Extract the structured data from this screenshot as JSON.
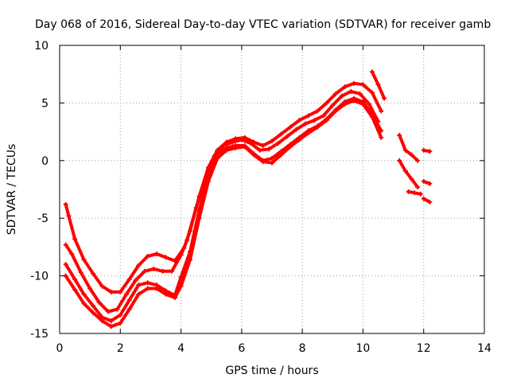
{
  "chart_data": {
    "type": "scatter",
    "title": "Day 068 of 2016, Sidereal Day-to-day VTEC variation (SDTVAR) for receiver gamb",
    "xlabel": "GPS time / hours",
    "ylabel": "SDTVAR / TECUs",
    "xlim": [
      0,
      14
    ],
    "ylim": [
      -15,
      10
    ],
    "xticks": [
      0,
      2,
      4,
      6,
      8,
      10,
      12,
      14
    ],
    "yticks": [
      -15,
      -10,
      -5,
      0,
      5,
      10
    ],
    "grid": true,
    "marker": "plus",
    "color": "#ff0000",
    "series": [
      {
        "name": "curve-1",
        "x": [
          0.2,
          0.3,
          0.5,
          0.8,
          1.1,
          1.4,
          1.7,
          2.0,
          2.3,
          2.6,
          2.9,
          3.2,
          3.5,
          3.8,
          4.1,
          4.3,
          4.6,
          4.9,
          5.2,
          5.5,
          5.8,
          6.1,
          6.4,
          6.7,
          7.0,
          7.3,
          7.6,
          7.9,
          8.2,
          8.5,
          8.8,
          9.1,
          9.4,
          9.7,
          10.0,
          10.3,
          10.6
        ],
        "y": [
          -3.8,
          -4.8,
          -6.8,
          -8.6,
          -9.8,
          -10.9,
          -11.4,
          -11.4,
          -10.3,
          -9.1,
          -8.3,
          -8.1,
          -8.4,
          -8.7,
          -7.6,
          -6.1,
          -3.1,
          -0.6,
          0.9,
          1.6,
          1.9,
          2.0,
          1.6,
          1.3,
          1.7,
          2.3,
          2.9,
          3.5,
          3.9,
          4.3,
          5.0,
          5.8,
          6.4,
          6.7,
          6.6,
          5.9,
          4.3
        ]
      },
      {
        "name": "curve-2",
        "x": [
          0.2,
          0.4,
          0.7,
          1.0,
          1.3,
          1.6,
          1.9,
          2.2,
          2.5,
          2.8,
          3.1,
          3.4,
          3.7,
          4.0,
          4.2,
          4.5,
          4.8,
          5.1,
          5.4,
          5.7,
          6.0,
          6.3,
          6.6,
          6.9,
          7.2,
          7.5,
          7.8,
          8.1,
          8.4,
          8.7,
          9.0,
          9.3,
          9.6,
          9.9,
          10.2,
          10.5
        ],
        "y": [
          -7.3,
          -8.1,
          -9.7,
          -11.1,
          -12.3,
          -13.1,
          -12.9,
          -11.6,
          -10.4,
          -9.6,
          -9.4,
          -9.6,
          -9.6,
          -8.2,
          -6.9,
          -4.1,
          -1.6,
          0.4,
          1.3,
          1.6,
          1.8,
          1.5,
          0.9,
          1.0,
          1.5,
          2.1,
          2.7,
          3.2,
          3.5,
          3.9,
          4.8,
          5.6,
          6.0,
          5.8,
          4.9,
          3.4
        ]
      },
      {
        "name": "curve-3",
        "x": [
          0.2,
          0.5,
          0.8,
          1.1,
          1.4,
          1.7,
          2.0,
          2.3,
          2.6,
          2.9,
          3.2,
          3.5,
          3.8,
          4.0,
          4.3,
          4.6,
          4.9,
          5.2,
          5.5,
          5.8,
          6.1,
          6.4,
          6.7,
          7.0,
          7.3,
          7.6,
          7.9,
          8.2,
          8.5,
          8.8,
          9.1,
          9.4,
          9.7,
          10.0,
          10.3,
          10.6
        ],
        "y": [
          -9.0,
          -10.3,
          -11.6,
          -12.6,
          -13.6,
          -13.9,
          -13.4,
          -12.1,
          -10.8,
          -10.6,
          -10.8,
          -11.3,
          -11.7,
          -10.1,
          -7.9,
          -4.3,
          -1.4,
          0.6,
          1.1,
          1.3,
          1.3,
          0.6,
          0.0,
          0.2,
          0.8,
          1.4,
          2.0,
          2.6,
          3.0,
          3.6,
          4.4,
          5.1,
          5.4,
          5.1,
          4.0,
          2.6
        ]
      },
      {
        "name": "curve-4",
        "x": [
          0.2,
          0.5,
          0.8,
          1.1,
          1.4,
          1.7,
          2.0,
          2.3,
          2.6,
          2.9,
          3.2,
          3.5,
          3.8,
          4.0,
          4.3,
          4.6,
          4.9,
          5.2,
          5.5,
          5.8,
          6.1,
          6.4,
          6.7,
          7.0,
          7.3,
          7.6,
          7.9,
          8.2,
          8.5,
          8.8,
          9.1,
          9.4,
          9.7,
          10.0,
          10.3,
          10.6
        ],
        "y": [
          -10.0,
          -11.2,
          -12.4,
          -13.2,
          -13.9,
          -14.4,
          -14.1,
          -12.9,
          -11.6,
          -11.1,
          -11.1,
          -11.6,
          -11.9,
          -10.9,
          -8.6,
          -5.0,
          -1.8,
          0.2,
          0.9,
          1.1,
          1.2,
          0.5,
          -0.1,
          -0.2,
          0.5,
          1.2,
          1.8,
          2.4,
          2.9,
          3.5,
          4.3,
          4.9,
          5.2,
          4.9,
          3.8,
          2.0
        ]
      },
      {
        "name": "fragment-a",
        "x": [
          10.3,
          10.5,
          10.7
        ],
        "y": [
          7.7,
          6.6,
          5.4
        ]
      },
      {
        "name": "fragment-b",
        "x": [
          11.2,
          11.4,
          11.6,
          11.8
        ],
        "y": [
          2.2,
          0.9,
          0.5,
          0.0
        ]
      },
      {
        "name": "fragment-c",
        "x": [
          11.2,
          11.4,
          11.6,
          11.8
        ],
        "y": [
          0.0,
          -0.9,
          -1.6,
          -2.3
        ]
      },
      {
        "name": "fragment-d",
        "x": [
          11.5,
          11.7,
          11.9
        ],
        "y": [
          -2.7,
          -2.8,
          -2.9
        ]
      },
      {
        "name": "fragment-e",
        "x": [
          12.0,
          12.2
        ],
        "y": [
          0.9,
          0.8
        ]
      },
      {
        "name": "fragment-f",
        "x": [
          12.0,
          12.2
        ],
        "y": [
          -1.8,
          -2.0
        ]
      },
      {
        "name": "fragment-g",
        "x": [
          12.0,
          12.2
        ],
        "y": [
          -3.3,
          -3.6
        ]
      }
    ]
  }
}
